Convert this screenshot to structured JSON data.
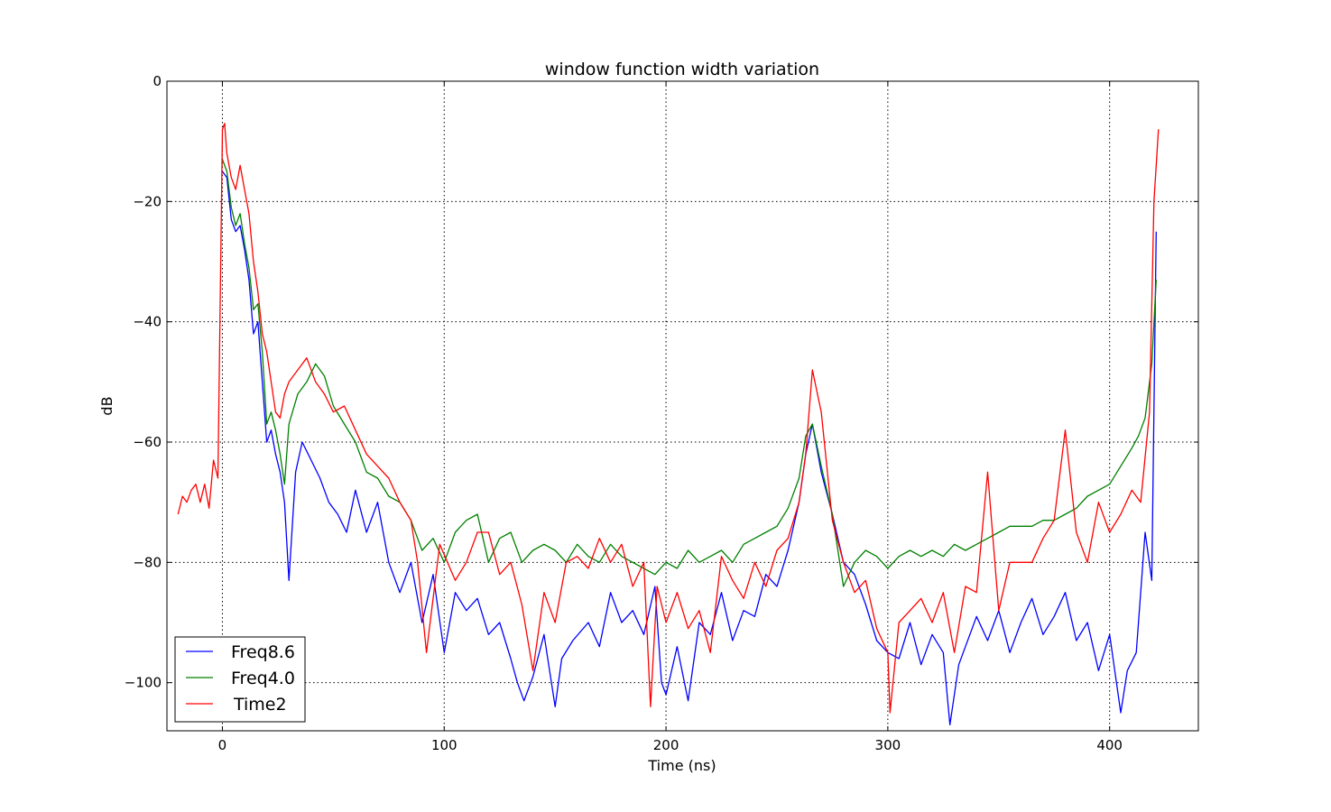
{
  "chart_data": {
    "type": "line",
    "title": "window function width variation",
    "xlabel": "Time (ns)",
    "ylabel": "dB",
    "xlim": [
      -25,
      440
    ],
    "ylim": [
      -108,
      0
    ],
    "x_ticks": [
      0,
      100,
      200,
      300,
      400
    ],
    "y_ticks": [
      0,
      -20,
      -40,
      -60,
      -80,
      -100
    ],
    "x_tick_labels": [
      "0",
      "100",
      "200",
      "300",
      "400"
    ],
    "y_tick_labels": [
      "0",
      "−20",
      "−40",
      "−60",
      "−80",
      "−100"
    ],
    "grid": true,
    "legend_position": "lower-left",
    "series": [
      {
        "name": "Freq8.6",
        "color": "#0000ff",
        "x": [
          0,
          2,
          4,
          6,
          8,
          10,
          12,
          14,
          16,
          18,
          20,
          22,
          24,
          26,
          28,
          30,
          33,
          36,
          40,
          44,
          48,
          52,
          56,
          60,
          65,
          70,
          75,
          80,
          85,
          90,
          95,
          100,
          105,
          110,
          115,
          120,
          125,
          130,
          133,
          136,
          140,
          145,
          150,
          153,
          158,
          165,
          170,
          175,
          180,
          185,
          190,
          195,
          198,
          200,
          205,
          210,
          215,
          220,
          225,
          230,
          235,
          240,
          245,
          250,
          255,
          260,
          263,
          266,
          270,
          275,
          280,
          285,
          290,
          295,
          300,
          305,
          310,
          315,
          320,
          325,
          328,
          332,
          340,
          345,
          350,
          355,
          360,
          365,
          370,
          375,
          380,
          385,
          390,
          395,
          400,
          405,
          408,
          412,
          416,
          419,
          421
        ],
        "y": [
          -15,
          -16,
          -23,
          -25,
          -24,
          -28,
          -33,
          -42,
          -40,
          -50,
          -60,
          -58,
          -62,
          -65,
          -70,
          -83,
          -65,
          -60,
          -63,
          -66,
          -70,
          -72,
          -75,
          -68,
          -75,
          -70,
          -80,
          -85,
          -80,
          -90,
          -82,
          -95,
          -85,
          -88,
          -86,
          -92,
          -90,
          -96,
          -100,
          -103,
          -99,
          -92,
          -104,
          -96,
          -93,
          -90,
          -94,
          -85,
          -90,
          -88,
          -92,
          -84,
          -100,
          -102,
          -94,
          -103,
          -90,
          -92,
          -85,
          -93,
          -88,
          -89,
          -82,
          -84,
          -78,
          -70,
          -62,
          -57,
          -65,
          -72,
          -80,
          -82,
          -87,
          -93,
          -95,
          -96,
          -90,
          -97,
          -92,
          -95,
          -107,
          -97,
          -89,
          -93,
          -88,
          -95,
          -90,
          -86,
          -92,
          -89,
          -85,
          -93,
          -90,
          -98,
          -92,
          -105,
          -98,
          -95,
          -75,
          -83,
          -25
        ]
      },
      {
        "name": "Freq4.0",
        "color": "#008000",
        "x": [
          0,
          2,
          4,
          6,
          8,
          10,
          12,
          14,
          16,
          18,
          20,
          22,
          24,
          26,
          28,
          30,
          34,
          38,
          42,
          46,
          50,
          55,
          60,
          65,
          70,
          75,
          80,
          85,
          90,
          95,
          100,
          105,
          110,
          115,
          120,
          125,
          130,
          135,
          140,
          145,
          150,
          155,
          160,
          165,
          170,
          175,
          180,
          185,
          190,
          195,
          200,
          205,
          210,
          215,
          220,
          225,
          230,
          235,
          240,
          245,
          250,
          255,
          260,
          263,
          266,
          270,
          275,
          280,
          285,
          290,
          295,
          300,
          305,
          310,
          315,
          320,
          325,
          330,
          335,
          340,
          345,
          350,
          355,
          360,
          365,
          370,
          375,
          380,
          385,
          390,
          395,
          400,
          405,
          410,
          413,
          416,
          419,
          421
        ],
        "y": [
          -13,
          -15,
          -21,
          -24,
          -22,
          -27,
          -31,
          -38,
          -37,
          -45,
          -57,
          -55,
          -58,
          -62,
          -67,
          -57,
          -52,
          -50,
          -47,
          -49,
          -54,
          -57,
          -60,
          -65,
          -66,
          -69,
          -70,
          -73,
          -78,
          -76,
          -80,
          -75,
          -73,
          -72,
          -80,
          -76,
          -75,
          -80,
          -78,
          -77,
          -78,
          -80,
          -77,
          -79,
          -80,
          -77,
          -79,
          -80,
          -81,
          -82,
          -80,
          -81,
          -78,
          -80,
          -79,
          -78,
          -80,
          -77,
          -76,
          -75,
          -74,
          -71,
          -66,
          -59,
          -57,
          -64,
          -72,
          -84,
          -80,
          -78,
          -79,
          -81,
          -79,
          -78,
          -79,
          -78,
          -79,
          -77,
          -78,
          -77,
          -76,
          -75,
          -74,
          -74,
          -74,
          -73,
          -73,
          -72,
          -71,
          -69,
          -68,
          -67,
          -64,
          -61,
          -59,
          -56,
          -47,
          -33
        ]
      },
      {
        "name": "Time2",
        "color": "#ff0000",
        "x": [
          -20,
          -18,
          -16,
          -14,
          -12,
          -10,
          -8,
          -6,
          -4,
          -2,
          0,
          1,
          2,
          4,
          6,
          8,
          10,
          12,
          14,
          16,
          18,
          20,
          22,
          24,
          26,
          28,
          30,
          34,
          38,
          42,
          46,
          50,
          55,
          60,
          65,
          70,
          75,
          80,
          85,
          88,
          92,
          98,
          105,
          110,
          115,
          120,
          125,
          130,
          135,
          140,
          145,
          150,
          155,
          160,
          165,
          170,
          175,
          180,
          185,
          190,
          193,
          196,
          200,
          205,
          210,
          215,
          220,
          225,
          230,
          235,
          240,
          245,
          250,
          255,
          260,
          263,
          266,
          270,
          275,
          280,
          285,
          290,
          295,
          300,
          301,
          305,
          310,
          315,
          320,
          325,
          330,
          335,
          340,
          345,
          350,
          355,
          360,
          365,
          370,
          375,
          380,
          385,
          390,
          395,
          400,
          405,
          410,
          414,
          418,
          420,
          422
        ],
        "y": [
          -72,
          -69,
          -70,
          -68,
          -67,
          -70,
          -67,
          -71,
          -63,
          -66,
          -8,
          -7,
          -12,
          -16,
          -18,
          -14,
          -18,
          -22,
          -30,
          -35,
          -42,
          -45,
          -50,
          -55,
          -56,
          -52,
          -50,
          -48,
          -46,
          -50,
          -52,
          -55,
          -54,
          -58,
          -62,
          -64,
          -66,
          -70,
          -73,
          -80,
          -95,
          -77,
          -83,
          -80,
          -75,
          -75,
          -82,
          -80,
          -87,
          -98,
          -85,
          -90,
          -80,
          -79,
          -81,
          -76,
          -80,
          -77,
          -84,
          -80,
          -104,
          -84,
          -90,
          -85,
          -91,
          -88,
          -95,
          -79,
          -83,
          -86,
          -80,
          -84,
          -78,
          -76,
          -70,
          -62,
          -48,
          -55,
          -73,
          -80,
          -85,
          -83,
          -91,
          -95,
          -105,
          -90,
          -88,
          -86,
          -90,
          -85,
          -95,
          -84,
          -85,
          -65,
          -88,
          -80,
          -80,
          -80,
          -76,
          -73,
          -58,
          -75,
          -80,
          -70,
          -75,
          -72,
          -68,
          -70,
          -55,
          -20,
          -8
        ]
      }
    ]
  }
}
